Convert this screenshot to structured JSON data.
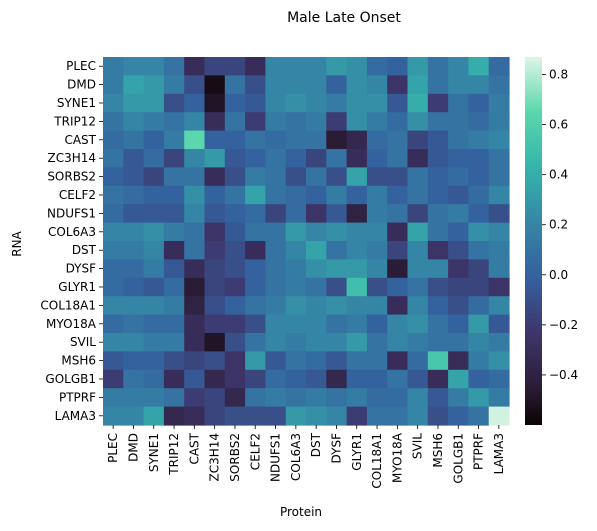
{
  "chart_data": {
    "type": "heatmap",
    "title": "Male Late Onset",
    "xlabel": "Protein",
    "ylabel": "RNA",
    "rows": [
      "PLEC",
      "DMD",
      "SYNE1",
      "TRIP12",
      "CAST",
      "ZC3H14",
      "SORBS2",
      "CELF2",
      "NDUFS1",
      "COL6A3",
      "DST",
      "DYSF",
      "GLYR1",
      "COL18A1",
      "MYO18A",
      "SVIL",
      "MSH6",
      "GOLGB1",
      "PTPRF",
      "LAMA3"
    ],
    "columns": [
      "PLEC",
      "DMD",
      "SYNE1",
      "TRIP12",
      "CAST",
      "ZC3H14",
      "SORBS2",
      "CELF2",
      "NDUFS1",
      "COL6A3",
      "DST",
      "DYSF",
      "GLYR1",
      "COL18A1",
      "MYO18A",
      "SVIL",
      "MSH6",
      "GOLGB1",
      "PTPRF",
      "LAMA3"
    ],
    "values": [
      [
        0.15,
        0.2,
        0.2,
        0.1,
        -0.3,
        -0.15,
        -0.15,
        -0.3,
        0.2,
        0.2,
        0.2,
        0.3,
        0.25,
        0.05,
        0.0,
        0.3,
        0.1,
        0.2,
        0.4,
        0.05
      ],
      [
        0.15,
        0.35,
        0.3,
        0.15,
        -0.1,
        -0.55,
        0.1,
        -0.1,
        0.2,
        0.2,
        0.2,
        0.0,
        0.25,
        0.2,
        -0.25,
        0.35,
        0.1,
        0.2,
        0.2,
        0.1
      ],
      [
        0.2,
        0.3,
        0.3,
        -0.1,
        0.0,
        -0.5,
        0.0,
        -0.05,
        0.2,
        0.25,
        0.2,
        0.15,
        0.25,
        0.25,
        -0.05,
        0.4,
        -0.2,
        0.1,
        0.0,
        0.15
      ],
      [
        0.1,
        0.2,
        0.15,
        0.1,
        0.2,
        -0.3,
        0.1,
        -0.2,
        0.15,
        0.1,
        0.15,
        -0.2,
        0.25,
        0.15,
        0.05,
        0.25,
        0.1,
        0.1,
        0.05,
        0.15
      ],
      [
        0.05,
        0.1,
        0.0,
        0.15,
        0.65,
        0.0,
        0.0,
        0.1,
        0.05,
        0.1,
        0.1,
        -0.45,
        -0.35,
        0.05,
        0.1,
        -0.15,
        -0.05,
        0.1,
        0.15,
        0.2
      ],
      [
        0.1,
        -0.05,
        0.05,
        -0.15,
        0.2,
        0.3,
        -0.05,
        0.0,
        0.1,
        0.0,
        -0.15,
        0.1,
        -0.3,
        0.0,
        0.1,
        -0.3,
        -0.05,
        0.0,
        0.0,
        0.1
      ],
      [
        0.0,
        -0.05,
        -0.15,
        0.1,
        0.1,
        -0.3,
        -0.1,
        0.15,
        0.1,
        -0.1,
        0.1,
        -0.1,
        0.35,
        -0.1,
        -0.1,
        0.1,
        0.0,
        0.05,
        0.0,
        0.1
      ],
      [
        0.1,
        0.05,
        0.0,
        0.0,
        0.25,
        0.0,
        0.1,
        0.35,
        0.1,
        0.05,
        0.0,
        0.15,
        0.0,
        0.15,
        0.0,
        0.1,
        0.0,
        -0.05,
        0.05,
        0.2
      ],
      [
        0.05,
        -0.05,
        -0.05,
        -0.05,
        0.2,
        -0.05,
        0.0,
        0.05,
        -0.15,
        0.05,
        -0.25,
        -0.05,
        -0.4,
        0.15,
        0.1,
        -0.15,
        0.1,
        0.15,
        0.0,
        -0.1
      ],
      [
        0.2,
        0.2,
        0.25,
        0.15,
        0.1,
        -0.25,
        -0.05,
        0.1,
        0.1,
        0.3,
        0.2,
        0.25,
        0.2,
        0.2,
        -0.3,
        0.35,
        0.1,
        0.0,
        0.25,
        0.2
      ],
      [
        0.15,
        0.15,
        0.2,
        -0.3,
        0.1,
        -0.2,
        -0.1,
        -0.3,
        0.1,
        0.2,
        0.35,
        0.1,
        0.2,
        0.15,
        -0.15,
        0.2,
        -0.25,
        -0.1,
        0.1,
        0.15
      ],
      [
        0.05,
        0.05,
        0.15,
        -0.05,
        -0.3,
        -0.15,
        -0.1,
        0.0,
        0.1,
        0.15,
        0.25,
        0.3,
        0.3,
        0.2,
        -0.45,
        0.2,
        0.2,
        -0.25,
        -0.15,
        0.15
      ],
      [
        0.05,
        0.0,
        -0.05,
        0.05,
        -0.45,
        -0.15,
        -0.2,
        0.0,
        0.1,
        0.15,
        0.1,
        -0.1,
        0.5,
        -0.1,
        0.0,
        0.1,
        -0.1,
        -0.15,
        -0.15,
        -0.25
      ],
      [
        0.2,
        0.2,
        0.2,
        0.15,
        -0.4,
        -0.1,
        0.0,
        0.1,
        0.15,
        0.25,
        0.2,
        0.25,
        0.2,
        0.2,
        -0.3,
        0.2,
        0.0,
        -0.1,
        0.05,
        0.2
      ],
      [
        0.05,
        0.1,
        0.05,
        0.05,
        -0.3,
        -0.2,
        -0.2,
        -0.1,
        0.2,
        0.2,
        0.2,
        0.1,
        0.15,
        0.0,
        0.2,
        0.25,
        0.1,
        0.0,
        0.3,
        -0.05
      ],
      [
        0.2,
        0.2,
        0.15,
        0.15,
        -0.3,
        -0.5,
        -0.1,
        0.1,
        0.2,
        0.15,
        0.2,
        0.2,
        0.3,
        0.1,
        0.2,
        0.15,
        0.1,
        0.1,
        0.2,
        0.15
      ],
      [
        -0.05,
        0.0,
        0.0,
        -0.1,
        -0.15,
        -0.1,
        -0.25,
        0.3,
        -0.05,
        0.1,
        0.05,
        -0.05,
        0.1,
        0.1,
        -0.3,
        0.05,
        0.55,
        -0.3,
        0.15,
        0.25
      ],
      [
        -0.2,
        0.1,
        0.05,
        -0.3,
        -0.05,
        -0.35,
        -0.25,
        -0.15,
        0.05,
        0.0,
        -0.05,
        -0.35,
        0.0,
        0.0,
        0.1,
        -0.05,
        -0.3,
        0.35,
        0.0,
        0.05
      ],
      [
        0.15,
        0.15,
        0.15,
        0.1,
        -0.2,
        -0.15,
        -0.35,
        0.1,
        0.15,
        0.1,
        0.15,
        0.1,
        0.15,
        0.05,
        0.05,
        0.2,
        -0.05,
        0.15,
        0.3,
        0.15
      ],
      [
        0.2,
        0.2,
        0.35,
        -0.35,
        -0.3,
        -0.15,
        -0.1,
        -0.1,
        -0.1,
        0.3,
        0.25,
        0.2,
        -0.2,
        0.1,
        0.1,
        0.2,
        -0.1,
        0.0,
        0.1,
        0.85
      ]
    ],
    "colorbar": {
      "colormap": "mako",
      "vmin": -0.6,
      "vmax": 0.87,
      "ticks": [
        -0.4,
        -0.2,
        0.0,
        0.2,
        0.4,
        0.6,
        0.8
      ],
      "tick_labels": [
        "−0.4",
        "−0.2",
        "0.0",
        "0.2",
        "0.4",
        "0.6",
        "0.8"
      ]
    },
    "grid": false,
    "legend": "none"
  }
}
